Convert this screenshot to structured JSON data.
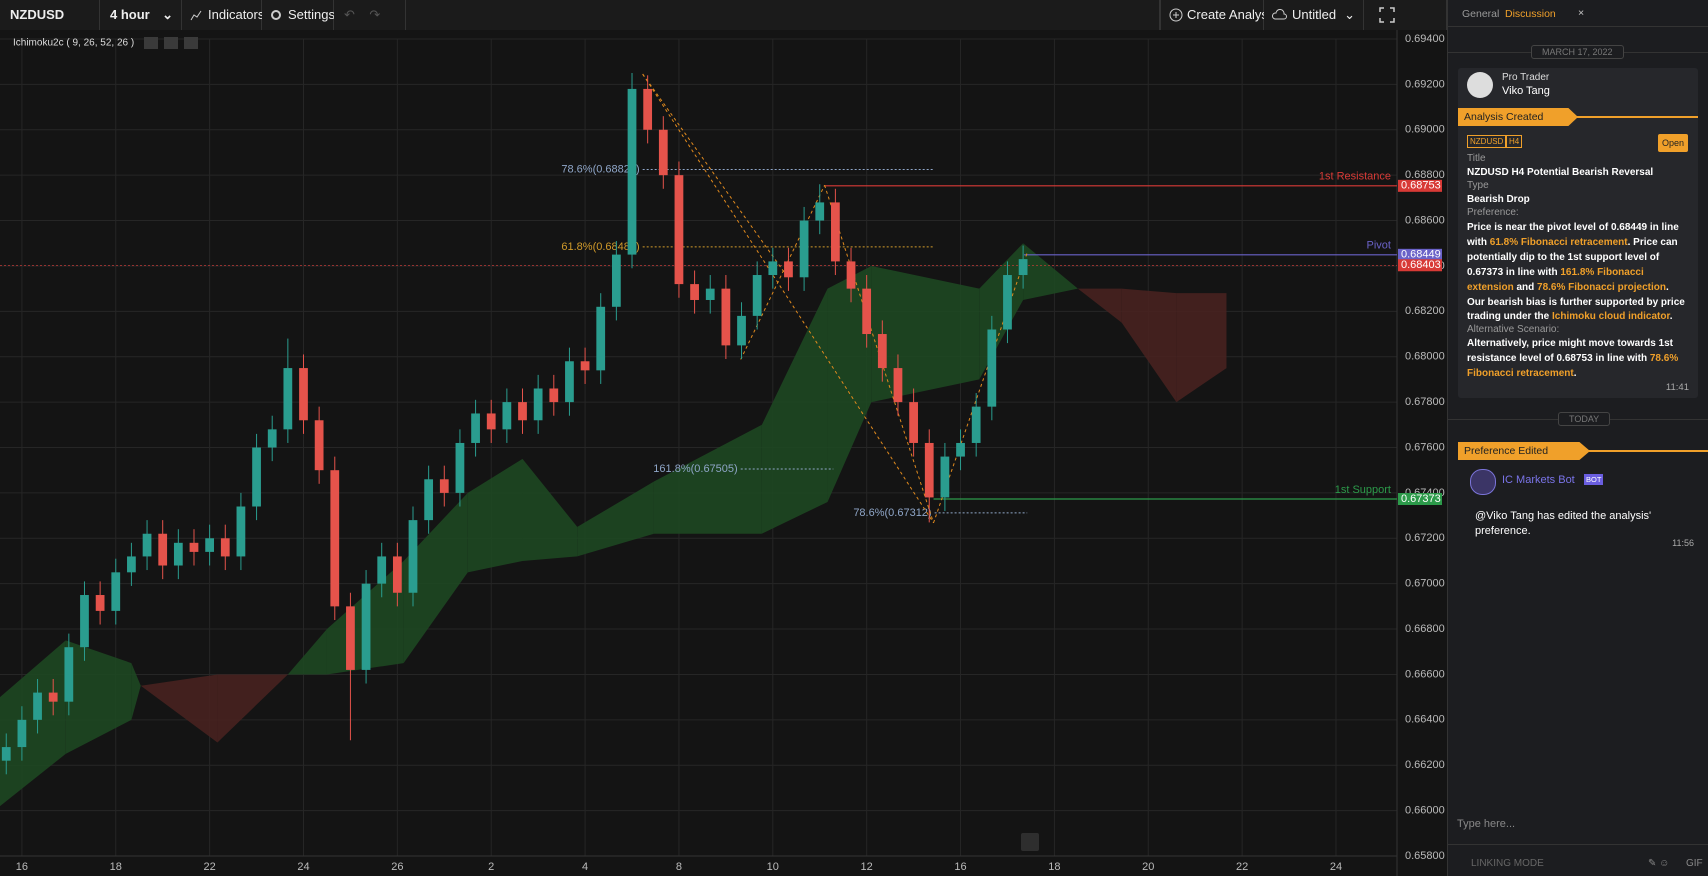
{
  "toolbar": {
    "symbol": "NZDUSD",
    "timeframe": "4 hour",
    "indicators": "Indicators",
    "settings": "Settings",
    "create": "Create Analysis",
    "layout": "Untitled"
  },
  "indicator_label": "Ichimoku2c ( 9, 26, 52, 26 )",
  "chart_data": {
    "type": "candlestick",
    "x": [
      -1,
      0,
      1,
      2,
      3,
      4,
      5,
      6,
      7,
      8,
      9,
      10,
      11,
      12,
      13,
      14,
      15,
      16,
      17,
      18,
      19,
      20,
      21,
      22,
      23,
      24,
      25,
      26,
      27,
      28,
      29,
      30,
      31,
      32,
      33,
      34,
      35,
      36,
      37,
      38,
      39,
      40,
      41,
      42,
      43,
      44,
      45,
      46,
      47,
      48,
      49,
      50,
      51,
      52,
      53,
      54,
      55,
      56,
      57,
      58,
      59,
      60,
      61,
      62,
      63,
      64
    ],
    "open": [
      0.6622,
      0.6628,
      0.664,
      0.6652,
      0.6648,
      0.6672,
      0.6695,
      0.6688,
      0.6705,
      0.6712,
      0.6722,
      0.6708,
      0.6718,
      0.6714,
      0.672,
      0.6712,
      0.6734,
      0.676,
      0.6768,
      0.6795,
      0.6772,
      0.675,
      0.669,
      0.6662,
      0.67,
      0.6712,
      0.6696,
      0.6728,
      0.6746,
      0.674,
      0.6762,
      0.6775,
      0.6768,
      0.678,
      0.6772,
      0.6786,
      0.678,
      0.6798,
      0.6794,
      0.6822,
      0.6845,
      0.6918,
      0.69,
      0.688,
      0.6832,
      0.6825,
      0.683,
      0.6805,
      0.6818,
      0.6836,
      0.6842,
      0.6835,
      0.686,
      0.6868,
      0.6842,
      0.683,
      0.681,
      0.6795,
      0.678,
      0.6762,
      0.6738,
      0.6756,
      0.6762,
      0.6778,
      0.6812,
      0.6836
    ],
    "high": [
      0.6634,
      0.6646,
      0.6658,
      0.6658,
      0.6678,
      0.6701,
      0.6701,
      0.6711,
      0.6718,
      0.6728,
      0.6728,
      0.6724,
      0.6724,
      0.6726,
      0.6726,
      0.674,
      0.6766,
      0.6774,
      0.6808,
      0.6801,
      0.6778,
      0.6756,
      0.6696,
      0.6706,
      0.6718,
      0.6718,
      0.6734,
      0.6752,
      0.6752,
      0.6768,
      0.6781,
      0.6781,
      0.6786,
      0.6786,
      0.6792,
      0.6792,
      0.6804,
      0.6804,
      0.6828,
      0.6851,
      0.6925,
      0.6924,
      0.6906,
      0.6886,
      0.6838,
      0.6836,
      0.6836,
      0.6824,
      0.6842,
      0.6848,
      0.6848,
      0.6866,
      0.6876,
      0.6874,
      0.6848,
      0.6836,
      0.6816,
      0.6801,
      0.6786,
      0.6768,
      0.6762,
      0.6768,
      0.6784,
      0.6818,
      0.6842,
      0.6849
    ],
    "low": [
      0.6616,
      0.6622,
      0.6634,
      0.6642,
      0.6642,
      0.6666,
      0.6682,
      0.6682,
      0.6699,
      0.6706,
      0.6702,
      0.6702,
      0.6708,
      0.6708,
      0.6706,
      0.6706,
      0.6728,
      0.6754,
      0.6762,
      0.6766,
      0.6744,
      0.6684,
      0.6631,
      0.6656,
      0.6694,
      0.669,
      0.669,
      0.6722,
      0.6734,
      0.6734,
      0.6756,
      0.6762,
      0.6762,
      0.6766,
      0.6766,
      0.6774,
      0.6774,
      0.6788,
      0.6788,
      0.6816,
      0.6839,
      0.6894,
      0.6874,
      0.6826,
      0.6819,
      0.6819,
      0.6799,
      0.6799,
      0.6812,
      0.683,
      0.6829,
      0.6829,
      0.6854,
      0.6836,
      0.6824,
      0.6804,
      0.6789,
      0.6774,
      0.6756,
      0.6727,
      0.6732,
      0.675,
      0.6756,
      0.6772,
      0.6806,
      0.683
    ],
    "close": [
      0.6628,
      0.664,
      0.6652,
      0.6648,
      0.6672,
      0.6695,
      0.6688,
      0.6705,
      0.6712,
      0.6722,
      0.6708,
      0.6718,
      0.6714,
      0.672,
      0.6712,
      0.6734,
      0.676,
      0.6768,
      0.6795,
      0.6772,
      0.675,
      0.669,
      0.6662,
      0.67,
      0.6712,
      0.6696,
      0.6728,
      0.6746,
      0.674,
      0.6762,
      0.6775,
      0.6768,
      0.678,
      0.6772,
      0.6786,
      0.678,
      0.6798,
      0.6794,
      0.6822,
      0.6845,
      0.6918,
      0.69,
      0.688,
      0.6832,
      0.6825,
      0.683,
      0.6805,
      0.6818,
      0.6836,
      0.6842,
      0.6835,
      0.686,
      0.6868,
      0.6842,
      0.683,
      0.681,
      0.6795,
      0.678,
      0.6762,
      0.6738,
      0.6756,
      0.6762,
      0.6778,
      0.6812,
      0.6836,
      0.6843
    ],
    "up_color": "#2a9d8f",
    "down_color": "#e5534b",
    "xlim": [
      -1.4,
      87.9
    ],
    "xticks": [
      {
        "value": 0,
        "label": "16"
      },
      {
        "value": 6,
        "label": "18"
      },
      {
        "value": 12,
        "label": "22"
      },
      {
        "value": 18,
        "label": "24"
      },
      {
        "value": 24,
        "label": "26"
      },
      {
        "value": 30,
        "label": "2"
      },
      {
        "value": 36,
        "label": "4"
      },
      {
        "value": 42,
        "label": "8"
      },
      {
        "value": 48,
        "label": "10"
      },
      {
        "value": 54,
        "label": "12"
      },
      {
        "value": 60,
        "label": "16"
      },
      {
        "value": 66,
        "label": "18"
      },
      {
        "value": 72,
        "label": "20"
      },
      {
        "value": 78,
        "label": "22"
      },
      {
        "value": 84,
        "label": "24"
      }
    ],
    "ylim": [
      0.658,
      0.694
    ],
    "yticks": [
      {
        "value": 0.694,
        "label": "0.69400"
      },
      {
        "value": 0.692,
        "label": "0.69200"
      },
      {
        "value": 0.69,
        "label": "0.69000"
      },
      {
        "value": 0.688,
        "label": "0.68800"
      },
      {
        "value": 0.686,
        "label": "0.68600"
      },
      {
        "value": 0.684,
        "label": "0.68400"
      },
      {
        "value": 0.682,
        "label": "0.68200"
      },
      {
        "value": 0.68,
        "label": "0.68000"
      },
      {
        "value": 0.678,
        "label": "0.67800"
      },
      {
        "value": 0.676,
        "label": "0.67600"
      },
      {
        "value": 0.674,
        "label": "0.67400"
      },
      {
        "value": 0.672,
        "label": "0.67200"
      },
      {
        "value": 0.67,
        "label": "0.67000"
      },
      {
        "value": 0.668,
        "label": "0.66800"
      },
      {
        "value": 0.666,
        "label": "0.66600"
      },
      {
        "value": 0.664,
        "label": "0.66400"
      },
      {
        "value": 0.662,
        "label": "0.66200"
      },
      {
        "value": 0.66,
        "label": "0.66000"
      },
      {
        "value": 0.658,
        "label": "0.65800"
      }
    ],
    "grid": true,
    "cloud": {
      "x": [
        -1.4,
        2.8,
        7,
        7.6,
        12.5,
        17,
        19.5,
        24.4,
        28.5,
        32,
        35.5,
        40.4,
        47.3,
        51.5,
        54.3,
        61.2,
        64,
        67.5,
        70.3,
        73.8,
        77
      ],
      "span_a": [
        0.665,
        0.6675,
        0.6665,
        0.6655,
        0.663,
        0.666,
        0.668,
        0.671,
        0.674,
        0.6755,
        0.6725,
        0.6745,
        0.677,
        0.683,
        0.684,
        0.683,
        0.685,
        0.683,
        0.6815,
        0.678,
        0.6795
      ],
      "span_b": [
        0.6602,
        0.6625,
        0.664,
        0.6655,
        0.666,
        0.666,
        0.666,
        0.6665,
        0.6705,
        0.671,
        0.6712,
        0.6722,
        0.6722,
        0.6736,
        0.678,
        0.679,
        0.6825,
        0.683,
        0.683,
        0.6828,
        0.6828
      ],
      "up_color": "#1d4a22",
      "down_color": "#4a2220"
    },
    "levels": [
      {
        "name": "1st Resistance",
        "value": 0.68753,
        "color": "#d83a36"
      },
      {
        "name": "Pivot",
        "value": 0.68449,
        "color": "#6a62c8"
      },
      {
        "value": 0.68403,
        "color": "#d83a36"
      },
      {
        "name": "1st Support",
        "value": 0.67373,
        "color": "#2c9a4a"
      }
    ],
    "fib_levels": [
      {
        "label": "78.6%(0.68825)",
        "value": 0.68825,
        "color": "#8fa6c8"
      },
      {
        "label": "61.8%(0.68484)",
        "value": 0.68484,
        "color": "#d09a2a"
      },
      {
        "label": "161.8%(0.67505)",
        "value": 0.67505,
        "color": "#8fa6c8"
      },
      {
        "label": "78.6%(0.67312)",
        "value": 0.67312,
        "color": "#8fa6c8"
      }
    ]
  },
  "sidebar": {
    "tabs": [
      "General",
      "Discussion"
    ],
    "date": "MARCH 17, 2022",
    "analysis": {
      "role": "Pro Trader",
      "author": "Viko Tang",
      "event": "Analysis Created",
      "tags": [
        "NZDUSD",
        "H4"
      ],
      "open": "Open",
      "title_label": "Title",
      "title": "NZDUSD H4 Potential Bearish Reversal",
      "type_label": "Type",
      "type": "Bearish Drop",
      "preference_label": "Preference:",
      "preference": [
        {
          "text": "Price is near the pivot level of 0.68449 in line with ",
          "hl": false
        },
        {
          "text": "61.8% Fibonacci retracement",
          "hl": true
        },
        {
          "text": ". Price can potentially dip to the 1st support level of 0.67373 in line with ",
          "hl": false
        },
        {
          "text": "161.8% Fibonacci extension",
          "hl": true
        },
        {
          "text": " and ",
          "hl": false
        },
        {
          "text": "78.6% Fibonacci projection",
          "hl": true
        },
        {
          "text": ". Our bearish bias is further supported by price trading under the ",
          "hl": false
        },
        {
          "text": "Ichimoku cloud indicator",
          "hl": true
        },
        {
          "text": ".",
          "hl": false
        }
      ],
      "alt_label": "Alternative Scenario:",
      "alternative": [
        {
          "text": "Alternatively, price might move towards 1st resistance level of 0.68753 in line with ",
          "hl": false
        },
        {
          "text": "78.6% Fibonacci retracement",
          "hl": true
        },
        {
          "text": ".",
          "hl": false
        }
      ],
      "time": "11:41"
    },
    "today": "TODAY",
    "update": {
      "event": "Preference Edited",
      "bot": "IC Markets Bot",
      "bot_tag": "BOT",
      "mention": "@Viko Tang",
      "message": "has edited the analysis' preference.",
      "time": "11:56"
    },
    "input_placeholder": "Type here...",
    "linking_mode": "LINKING MODE",
    "gif": "GIF"
  }
}
